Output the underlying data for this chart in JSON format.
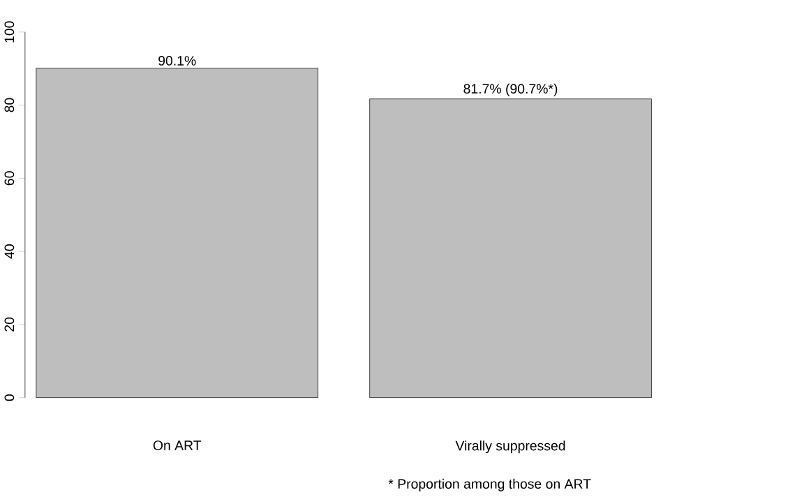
{
  "chart_data": {
    "type": "bar",
    "categories": [
      "On ART",
      "Virally suppressed"
    ],
    "values": [
      90.1,
      81.7
    ],
    "value_labels": [
      "90.1%",
      "81.7% (90.7%*)"
    ],
    "color": "#bebebe",
    "ylim": [
      0,
      100
    ],
    "yticks": [
      0,
      20,
      40,
      60,
      80,
      100
    ],
    "grid": false,
    "annotations": [
      "* Proportion among those on ART"
    ]
  }
}
